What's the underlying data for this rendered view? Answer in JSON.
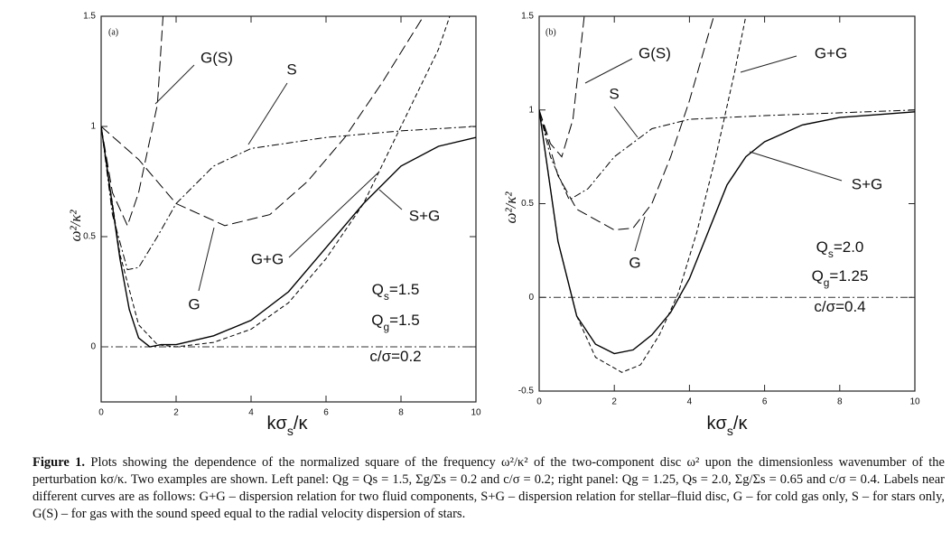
{
  "chart_data": [
    {
      "type": "line",
      "panel_label": "(a)",
      "ylabel": "ω²/κ²",
      "xlabel": {
        "text": "kσ",
        "sub": "s",
        "rest": "/κ"
      },
      "xlim": [
        0,
        10
      ],
      "ylim": [
        -0.25,
        1.5
      ],
      "xticks": [
        0,
        2,
        4,
        6,
        8,
        10
      ],
      "yticks": [
        0,
        0.5,
        1,
        1.5
      ],
      "zero_line": true,
      "series": [
        {
          "name": "S+G",
          "color": "#000",
          "style": "solid",
          "x": [
            0,
            0.25,
            0.5,
            0.75,
            1,
            1.3,
            1.6,
            2,
            3,
            4,
            5,
            6,
            7,
            8,
            9,
            10
          ],
          "values": [
            1,
            0.7,
            0.4,
            0.17,
            0.04,
            0,
            0.01,
            0.01,
            0.05,
            0.12,
            0.25,
            0.45,
            0.65,
            0.82,
            0.91,
            0.95
          ]
        },
        {
          "name": "G+G",
          "color": "#000",
          "style": "dashed",
          "x": [
            0,
            0.5,
            1,
            1.5,
            2,
            3,
            4,
            5,
            6,
            7,
            8,
            9,
            9.3
          ],
          "values": [
            1,
            0.42,
            0.1,
            0.01,
            0,
            0.02,
            0.08,
            0.2,
            0.4,
            0.65,
            1.0,
            1.35,
            1.5
          ]
        },
        {
          "name": "G",
          "color": "#000",
          "style": "longdash",
          "x": [
            0,
            1,
            2,
            3.3,
            4.5,
            5.5,
            6.5,
            7.5,
            8.6
          ],
          "values": [
            1,
            0.85,
            0.65,
            0.55,
            0.6,
            0.75,
            0.95,
            1.2,
            1.5
          ]
        },
        {
          "name": "S",
          "color": "#000",
          "style": "dashdot",
          "x": [
            0,
            0.3,
            0.7,
            1,
            1.5,
            2,
            3,
            4,
            6,
            8,
            10
          ],
          "values": [
            1,
            0.6,
            0.35,
            0.36,
            0.5,
            0.65,
            0.82,
            0.9,
            0.95,
            0.98,
            1.0
          ]
        },
        {
          "name": "G(S)",
          "color": "#000",
          "style": "longdash",
          "x": [
            0,
            0.3,
            0.7,
            1,
            1.5,
            1.65
          ],
          "values": [
            1,
            0.7,
            0.55,
            0.7,
            1.1,
            1.5
          ]
        }
      ],
      "annotations": [
        {
          "text": "Q",
          "sub": "s",
          "rest": "=1.5"
        },
        {
          "text": "Q",
          "sub": "g",
          "rest": "=1.5"
        },
        {
          "text": "c/σ=0.2"
        }
      ]
    },
    {
      "type": "line",
      "panel_label": "(b)",
      "ylabel": "ω²/κ²",
      "xlabel": {
        "text": "kσ",
        "sub": "s",
        "rest": "/κ"
      },
      "xlim": [
        0,
        10
      ],
      "ylim": [
        -0.5,
        1.5
      ],
      "xticks": [
        0,
        2,
        4,
        6,
        8,
        10
      ],
      "yticks": [
        -0.5,
        0,
        0.5,
        1,
        1.5
      ],
      "zero_line": true,
      "series": [
        {
          "name": "S+G",
          "color": "#000",
          "style": "solid",
          "x": [
            0,
            0.5,
            1,
            1.5,
            2,
            2.5,
            3,
            3.5,
            4,
            4.5,
            5,
            5.5,
            6,
            7,
            8,
            10
          ],
          "values": [
            1,
            0.3,
            -0.1,
            -0.25,
            -0.3,
            -0.28,
            -0.2,
            -0.08,
            0.1,
            0.35,
            0.6,
            0.75,
            0.83,
            0.92,
            0.96,
            0.99
          ]
        },
        {
          "name": "G+G",
          "color": "#000",
          "style": "dashed",
          "x": [
            0,
            0.5,
            1,
            1.5,
            2.2,
            2.7,
            3.2,
            3.7,
            4.2,
            4.7,
            5.2,
            5.5
          ],
          "values": [
            1,
            0.3,
            -0.1,
            -0.32,
            -0.4,
            -0.36,
            -0.2,
            0.02,
            0.35,
            0.75,
            1.2,
            1.5
          ]
        },
        {
          "name": "G",
          "color": "#000",
          "style": "longdash",
          "x": [
            0,
            0.5,
            1,
            2,
            2.5,
            3,
            3.5,
            4,
            4.5,
            4.65
          ],
          "values": [
            1,
            0.65,
            0.47,
            0.36,
            0.37,
            0.5,
            0.75,
            1.05,
            1.4,
            1.5
          ]
        },
        {
          "name": "S",
          "color": "#000",
          "style": "dashdot",
          "x": [
            0,
            0.3,
            0.8,
            1.3,
            2,
            3,
            4,
            6,
            10
          ],
          "values": [
            1,
            0.75,
            0.52,
            0.58,
            0.75,
            0.9,
            0.95,
            0.97,
            1.0
          ]
        },
        {
          "name": "G(S)",
          "color": "#000",
          "style": "longdash",
          "x": [
            0,
            0.3,
            0.6,
            0.9,
            1.2
          ],
          "values": [
            1,
            0.82,
            0.75,
            0.95,
            1.5
          ]
        }
      ],
      "annotations": [
        {
          "text": "Q",
          "sub": "s",
          "rest": "=2.0"
        },
        {
          "text": "Q",
          "sub": "g",
          "rest": "=1.25"
        },
        {
          "text": "c/σ=0.4"
        }
      ]
    }
  ],
  "caption": {
    "label": "Figure 1.",
    "text": "Plots showing the dependence of the normalized square of the frequency ω²/κ² of the two-component disc ω² upon the dimensionless wavenumber of the perturbation kσ/κ. Two examples are shown. Left panel: Qg = Qs = 1.5, Σg/Σs = 0.2 and c/σ = 0.2; right panel: Qg = 1.25, Qs = 2.0, Σg/Σs = 0.65 and c/σ = 0.4. Labels near different curves are as follows: G+G – dispersion relation for two fluid components, S+G – dispersion relation for stellar–fluid disc, G – for cold gas only, S – for stars only, G(S) – for gas with the sound speed equal to the radial velocity dispersion of stars."
  }
}
